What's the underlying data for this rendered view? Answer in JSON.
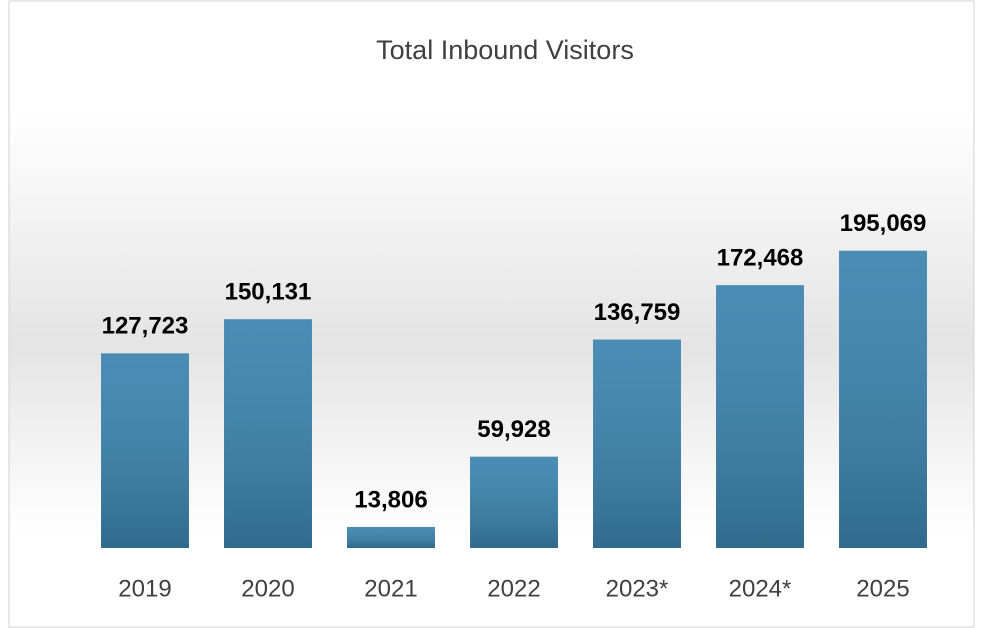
{
  "chart_data": {
    "type": "bar",
    "title": "Total Inbound Visitors",
    "categories": [
      "2019",
      "2020",
      "2021",
      "2022",
      "2023*",
      "2024*",
      "2025"
    ],
    "values": [
      127723,
      150131,
      13806,
      59928,
      136759,
      172468,
      195069
    ],
    "value_labels": [
      "127,723",
      "150,131",
      "13,806",
      "59,928",
      "136,759",
      "172,468",
      "195,069"
    ],
    "color": "#3a82ad",
    "ylim": [
      0,
      250000
    ]
  }
}
